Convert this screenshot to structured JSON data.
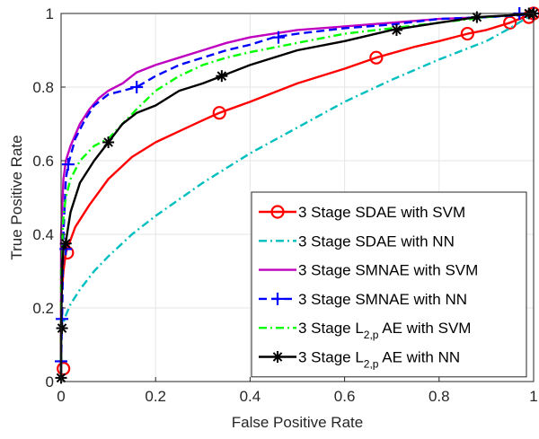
{
  "chart_data": {
    "type": "line",
    "title": "",
    "xlabel": "False Positive Rate",
    "ylabel": "True Positive Rate",
    "xlim": [
      0,
      1
    ],
    "ylim": [
      0,
      1
    ],
    "xticks": [
      "0",
      "0.2",
      "0.4",
      "0.6",
      "0.8",
      "1"
    ],
    "yticks": [
      "0",
      "0.2",
      "0.4",
      "0.6",
      "0.8",
      "1"
    ],
    "grid": true,
    "legend_position": "bottom-right",
    "series": [
      {
        "name_parts": [
          "3 Stage SDAE with SVM"
        ],
        "color": "#ff0000",
        "dash": "solid",
        "marker": "circle",
        "points": [
          [
            0,
            0.03
          ],
          [
            0,
            0.22
          ],
          [
            0.005,
            0.3
          ],
          [
            0.01,
            0.35
          ],
          [
            0.03,
            0.42
          ],
          [
            0.06,
            0.48
          ],
          [
            0.1,
            0.55
          ],
          [
            0.15,
            0.61
          ],
          [
            0.2,
            0.65
          ],
          [
            0.25,
            0.68
          ],
          [
            0.3,
            0.71
          ],
          [
            0.335,
            0.73
          ],
          [
            0.4,
            0.76
          ],
          [
            0.5,
            0.81
          ],
          [
            0.6,
            0.85
          ],
          [
            0.667,
            0.88
          ],
          [
            0.75,
            0.91
          ],
          [
            0.8,
            0.925
          ],
          [
            0.86,
            0.945
          ],
          [
            0.9,
            0.955
          ],
          [
            0.95,
            0.975
          ],
          [
            0.97,
            0.985
          ],
          [
            0.99,
            0.995
          ],
          [
            1,
            1
          ]
        ],
        "marker_points": [
          [
            0.005,
            0.035
          ],
          [
            0.013,
            0.35
          ],
          [
            0.335,
            0.73
          ],
          [
            0.667,
            0.88
          ],
          [
            0.86,
            0.945
          ],
          [
            0.95,
            0.975
          ],
          [
            0.99,
            0.99
          ],
          [
            1,
            1
          ]
        ]
      },
      {
        "name_parts": [
          "3 Stage SDAE with NN"
        ],
        "color": "#00bfbf",
        "dash": "dashdot",
        "marker": "none",
        "points": [
          [
            0,
            0.04
          ],
          [
            0,
            0.14
          ],
          [
            0.01,
            0.18
          ],
          [
            0.02,
            0.21
          ],
          [
            0.04,
            0.25
          ],
          [
            0.07,
            0.3
          ],
          [
            0.1,
            0.34
          ],
          [
            0.15,
            0.4
          ],
          [
            0.2,
            0.45
          ],
          [
            0.3,
            0.54
          ],
          [
            0.4,
            0.62
          ],
          [
            0.5,
            0.69
          ],
          [
            0.6,
            0.76
          ],
          [
            0.7,
            0.82
          ],
          [
            0.8,
            0.875
          ],
          [
            0.9,
            0.925
          ],
          [
            0.95,
            0.96
          ],
          [
            1,
            1
          ]
        ],
        "marker_points": []
      },
      {
        "name_parts": [
          "3 Stage SMNAE with SVM"
        ],
        "color": "#bf00bf",
        "dash": "solid",
        "marker": "none",
        "points": [
          [
            0,
            0.01
          ],
          [
            0,
            0.4
          ],
          [
            0.005,
            0.55
          ],
          [
            0.01,
            0.6
          ],
          [
            0.02,
            0.64
          ],
          [
            0.04,
            0.7
          ],
          [
            0.06,
            0.74
          ],
          [
            0.08,
            0.77
          ],
          [
            0.1,
            0.79
          ],
          [
            0.13,
            0.81
          ],
          [
            0.16,
            0.84
          ],
          [
            0.2,
            0.86
          ],
          [
            0.25,
            0.88
          ],
          [
            0.3,
            0.9
          ],
          [
            0.35,
            0.92
          ],
          [
            0.4,
            0.935
          ],
          [
            0.5,
            0.955
          ],
          [
            0.6,
            0.965
          ],
          [
            0.7,
            0.975
          ],
          [
            0.8,
            0.985
          ],
          [
            0.9,
            0.99
          ],
          [
            0.95,
            0.995
          ],
          [
            1,
            1
          ]
        ],
        "marker_points": []
      },
      {
        "name_parts": [
          "3 Stage SMNAE with NN"
        ],
        "color": "#0000ff",
        "dash": "dashed",
        "marker": "plus",
        "points": [
          [
            0,
            0.01
          ],
          [
            0,
            0.05
          ],
          [
            0.002,
            0.17
          ],
          [
            0.005,
            0.4
          ],
          [
            0.01,
            0.55
          ],
          [
            0.015,
            0.59
          ],
          [
            0.03,
            0.66
          ],
          [
            0.05,
            0.71
          ],
          [
            0.07,
            0.75
          ],
          [
            0.1,
            0.78
          ],
          [
            0.13,
            0.79
          ],
          [
            0.16,
            0.8
          ],
          [
            0.2,
            0.83
          ],
          [
            0.25,
            0.86
          ],
          [
            0.3,
            0.88
          ],
          [
            0.35,
            0.9
          ],
          [
            0.4,
            0.915
          ],
          [
            0.45,
            0.935
          ],
          [
            0.5,
            0.945
          ],
          [
            0.6,
            0.96
          ],
          [
            0.7,
            0.97
          ],
          [
            0.8,
            0.985
          ],
          [
            0.9,
            0.99
          ],
          [
            0.97,
            0.995
          ],
          [
            1,
            1
          ]
        ],
        "marker_points": [
          [
            0,
            0.055
          ],
          [
            0.002,
            0.17
          ],
          [
            0.01,
            0.36
          ],
          [
            0.015,
            0.59
          ],
          [
            0.16,
            0.8
          ],
          [
            0.46,
            0.935
          ],
          [
            0.97,
            1
          ],
          [
            1,
            1
          ]
        ]
      },
      {
        "name_parts": [
          "3 Stage L",
          "2,p",
          " AE with SVM"
        ],
        "color": "#00ff00",
        "dash": "dashdot",
        "marker": "none",
        "points": [
          [
            0,
            0.01
          ],
          [
            0,
            0.3
          ],
          [
            0.005,
            0.45
          ],
          [
            0.01,
            0.5
          ],
          [
            0.02,
            0.55
          ],
          [
            0.04,
            0.6
          ],
          [
            0.07,
            0.64
          ],
          [
            0.1,
            0.66
          ],
          [
            0.13,
            0.7
          ],
          [
            0.16,
            0.74
          ],
          [
            0.2,
            0.79
          ],
          [
            0.25,
            0.83
          ],
          [
            0.3,
            0.86
          ],
          [
            0.35,
            0.88
          ],
          [
            0.4,
            0.895
          ],
          [
            0.5,
            0.92
          ],
          [
            0.6,
            0.945
          ],
          [
            0.7,
            0.96
          ],
          [
            0.8,
            0.975
          ],
          [
            0.9,
            0.99
          ],
          [
            1,
            1
          ]
        ],
        "marker_points": []
      },
      {
        "name_parts": [
          "3 Stage L",
          "2,p",
          " AE with NN"
        ],
        "color": "#000000",
        "dash": "solid",
        "marker": "asterisk",
        "points": [
          [
            0,
            0.01
          ],
          [
            0,
            0.14
          ],
          [
            0.002,
            0.3
          ],
          [
            0.005,
            0.36
          ],
          [
            0.01,
            0.38
          ],
          [
            0.02,
            0.46
          ],
          [
            0.04,
            0.54
          ],
          [
            0.07,
            0.6
          ],
          [
            0.1,
            0.65
          ],
          [
            0.13,
            0.7
          ],
          [
            0.16,
            0.73
          ],
          [
            0.2,
            0.75
          ],
          [
            0.25,
            0.79
          ],
          [
            0.3,
            0.81
          ],
          [
            0.34,
            0.83
          ],
          [
            0.4,
            0.86
          ],
          [
            0.5,
            0.9
          ],
          [
            0.6,
            0.925
          ],
          [
            0.7,
            0.955
          ],
          [
            0.8,
            0.975
          ],
          [
            0.88,
            0.99
          ],
          [
            0.95,
            0.995
          ],
          [
            1,
            1
          ]
        ],
        "marker_points": [
          [
            0,
            0.01
          ],
          [
            0.002,
            0.145
          ],
          [
            0.01,
            0.375
          ],
          [
            0.1,
            0.65
          ],
          [
            0.34,
            0.83
          ],
          [
            0.71,
            0.955
          ],
          [
            0.88,
            0.99
          ],
          [
            0.99,
            1
          ],
          [
            1,
            1
          ]
        ]
      }
    ]
  }
}
